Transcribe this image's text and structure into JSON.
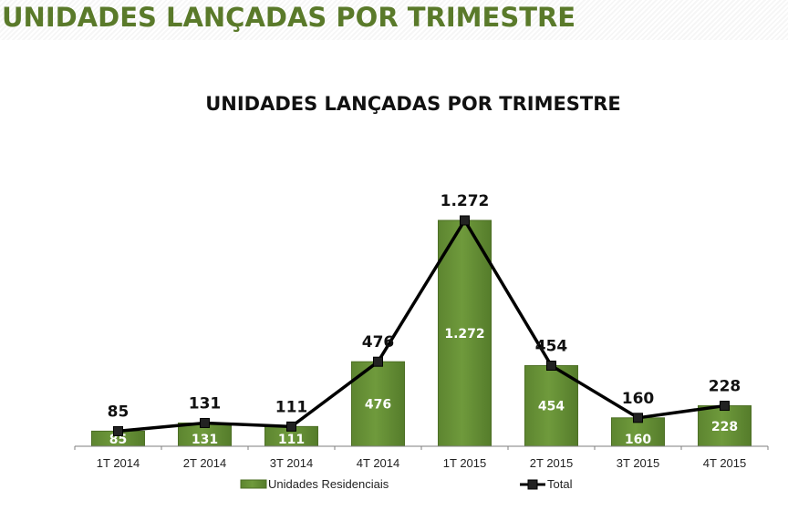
{
  "header": {
    "title": "UNIDADES LANÇADAS POR TRIMESTRE"
  },
  "colors": {
    "title_green": "#5a7a2a",
    "bar_green": "#6f9a3c",
    "bar_edge": "#4d6f25",
    "line": "#000000"
  },
  "chart_data": {
    "type": "bar",
    "title": "UNIDADES LANÇADAS POR TRIMESTRE",
    "categories": [
      "1T 2014",
      "2T 2014",
      "3T 2014",
      "4T 2014",
      "1T 2015",
      "2T 2015",
      "3T 2015",
      "4T 2015"
    ],
    "series": [
      {
        "name": "Unidades Residenciais",
        "kind": "bar",
        "values": [
          85,
          131,
          111,
          476,
          1272,
          454,
          160,
          228
        ],
        "labels": [
          "85",
          "131",
          "111",
          "476",
          "1.272",
          "454",
          "160",
          "228"
        ]
      },
      {
        "name": "Total",
        "kind": "line",
        "values": [
          85,
          131,
          111,
          476,
          1272,
          454,
          160,
          228
        ],
        "labels": [
          "85",
          "131",
          "111",
          "476",
          "1.272",
          "454",
          "160",
          "228"
        ]
      }
    ],
    "ylim": [
      0,
      1272
    ],
    "grid": false,
    "legend_position": "bottom"
  }
}
